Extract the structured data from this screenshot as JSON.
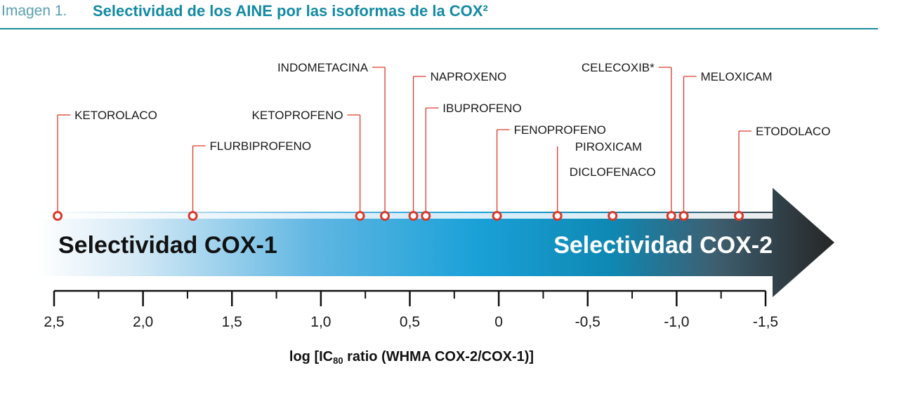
{
  "header": {
    "prefix": "Imagen 1.",
    "title": "Selectividad de los AINE por las isoformas de la COX²"
  },
  "colors": {
    "accent": "#138aa3",
    "marker": "#d93a2b",
    "arrow_dark": "#2b2b2b",
    "arrow_blue": "#1596c9"
  },
  "arrow": {
    "left_label": "Selectividad COX-1",
    "right_label": "Selectividad COX-2"
  },
  "chart_data": {
    "type": "scatter",
    "title": "",
    "xlabel": "log [IC80 ratio (WHMA COX-2/COX-1)]",
    "xlabel_parts": {
      "pre": "log [IC",
      "sub": "80",
      "post": " ratio (WHMA COX-2/COX-1)]"
    },
    "xlim": [
      2.5,
      -1.5
    ],
    "x_reversed": true,
    "ticks": [
      {
        "value": 2.5,
        "label": "2,5"
      },
      {
        "value": 2.0,
        "label": "2,0"
      },
      {
        "value": 1.5,
        "label": "1,5"
      },
      {
        "value": 1.0,
        "label": "1,0"
      },
      {
        "value": 0.5,
        "label": "0,5"
      },
      {
        "value": 0.0,
        "label": "0"
      },
      {
        "value": -0.5,
        "label": "-0,5"
      },
      {
        "value": -1.0,
        "label": "-1,0"
      },
      {
        "value": -1.5,
        "label": "-1,5"
      }
    ],
    "points": [
      {
        "name": "KETOROLACO",
        "x": 2.48
      },
      {
        "name": "FLURBIPROFENO",
        "x": 1.72
      },
      {
        "name": "KETOPROFENO",
        "x": 0.78
      },
      {
        "name": "INDOMETACINA",
        "x": 0.64
      },
      {
        "name": "NAPROXENO",
        "x": 0.48
      },
      {
        "name": "IBUPROFENO",
        "x": 0.41
      },
      {
        "name": "FENOPROFENO",
        "x": 0.01
      },
      {
        "name": "PIROXICAM",
        "x": -0.33
      },
      {
        "name": "DICLOFENACO",
        "x": -0.64
      },
      {
        "name": "CELECOXIB*",
        "x": -0.97
      },
      {
        "name": "MELOXICAM",
        "x": -1.04
      },
      {
        "name": "ETODOLACO",
        "x": -1.35
      }
    ]
  }
}
